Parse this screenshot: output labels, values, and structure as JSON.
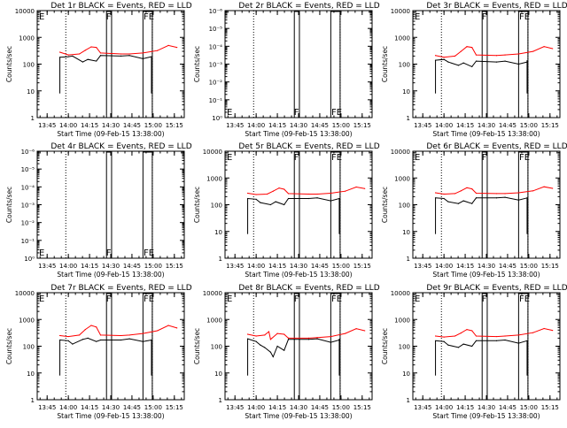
{
  "colors": {
    "events": "#000000",
    "lld": "#ff0000",
    "background": "#ffffff",
    "axes": "#000000"
  },
  "chart_data": [
    {
      "type": "line",
      "title": "Det 1r BLACK = Events, RED = LLD",
      "xlabel": "Start Time (09-Feb-15 13:38:00)",
      "ylabel": "Counts/sec",
      "xticks": [
        "13:45",
        "14:00",
        "14:15",
        "14:30",
        "14:45",
        "15:00",
        "15:15"
      ],
      "yticks": [
        "1",
        "10",
        "100",
        "1000",
        "10000"
      ],
      "ylim": [
        1,
        10000
      ],
      "yscale": "log",
      "grid": false,
      "has_data": true,
      "flag_labels": [
        "F",
        "FE"
      ],
      "series": [
        {
          "color": "#000000",
          "x": [
            13.9,
            14.0,
            14.05,
            14.17,
            14.23,
            14.33,
            14.38,
            14.62,
            14.72,
            14.88,
            14.98
          ],
          "y": [
            180,
            190,
            200,
            120,
            150,
            130,
            210,
            200,
            210,
            160,
            190
          ]
        },
        {
          "color": "#ff0000",
          "x": [
            13.9,
            14.0,
            14.13,
            14.2,
            14.27,
            14.33,
            14.38,
            14.62,
            14.72,
            14.88,
            15.05,
            15.18,
            15.28
          ],
          "y": [
            280,
            220,
            240,
            330,
            440,
            420,
            260,
            240,
            240,
            260,
            320,
            500,
            420
          ]
        }
      ]
    },
    {
      "type": "line",
      "title": "Det 2r BLACK = Events, RED = LLD",
      "xlabel": "Start Time (09-Feb-15 13:38:00)",
      "ylabel": "Counts/sec",
      "xticks": [
        "13:45",
        "14:00",
        "14:15",
        "14:30",
        "14:45",
        "15:00",
        "15:15"
      ],
      "yticks": [
        "10⁰",
        "10⁻¹",
        "10⁻²",
        "10⁻³",
        "10⁻⁴",
        "10⁻⁵",
        "10⁻⁶"
      ],
      "ylim": [
        1e-06,
        1
      ],
      "yscale": "log",
      "grid": false,
      "has_data": false,
      "flag_labels": [
        "F",
        "FE"
      ],
      "series": []
    },
    {
      "type": "line",
      "title": "Det 3r BLACK = Events, RED = LLD",
      "xlabel": "Start Time (09-Feb-15 13:38:00)",
      "ylabel": "Counts/sec",
      "xticks": [
        "13:45",
        "14:00",
        "14:15",
        "14:30",
        "14:45",
        "15:00",
        "15:15"
      ],
      "yticks": [
        "1",
        "10",
        "100",
        "1000",
        "10000"
      ],
      "ylim": [
        1,
        10000
      ],
      "yscale": "log",
      "grid": false,
      "has_data": true,
      "flag_labels": [
        "F",
        "FE"
      ],
      "series": [
        {
          "color": "#000000",
          "x": [
            13.9,
            14.0,
            14.05,
            14.17,
            14.23,
            14.33,
            14.38,
            14.62,
            14.72,
            14.88,
            14.98
          ],
          "y": [
            140,
            150,
            120,
            90,
            110,
            80,
            130,
            120,
            130,
            100,
            120
          ]
        },
        {
          "color": "#ff0000",
          "x": [
            13.9,
            14.0,
            14.13,
            14.2,
            14.27,
            14.33,
            14.38,
            14.62,
            14.72,
            14.88,
            15.05,
            15.18,
            15.28
          ],
          "y": [
            210,
            180,
            200,
            300,
            450,
            420,
            220,
            210,
            220,
            240,
            300,
            450,
            380
          ]
        }
      ]
    },
    {
      "type": "line",
      "title": "Det 4r BLACK = Events, RED = LLD",
      "xlabel": "Start Time (09-Feb-15 13:38:00)",
      "ylabel": "Counts/sec",
      "xticks": [
        "13:45",
        "14:00",
        "14:15",
        "14:30",
        "14:45",
        "15:00",
        "15:15"
      ],
      "yticks": [
        "10⁰",
        "10⁻¹",
        "10⁻²",
        "10⁻³",
        "10⁻⁴",
        "10⁻⁵",
        "10⁻⁶"
      ],
      "ylim": [
        1e-06,
        1
      ],
      "yscale": "log",
      "grid": false,
      "has_data": false,
      "flag_labels": [
        "F",
        "FE"
      ],
      "series": []
    },
    {
      "type": "line",
      "title": "Det 5r BLACK = Events, RED = LLD",
      "xlabel": "Start Time (09-Feb-15 13:38:00)",
      "ylabel": "Counts/sec",
      "xticks": [
        "13:45",
        "14:00",
        "14:15",
        "14:30",
        "14:45",
        "15:00",
        "15:15"
      ],
      "yticks": [
        "1",
        "10",
        "100",
        "1000",
        "10000"
      ],
      "ylim": [
        1,
        10000
      ],
      "yscale": "log",
      "grid": false,
      "has_data": true,
      "flag_labels": [
        "F",
        "FE"
      ],
      "series": [
        {
          "color": "#000000",
          "x": [
            13.9,
            14.0,
            14.05,
            14.17,
            14.23,
            14.33,
            14.38,
            14.62,
            14.72,
            14.88,
            14.98
          ],
          "y": [
            170,
            160,
            120,
            100,
            130,
            100,
            170,
            170,
            180,
            140,
            170
          ]
        },
        {
          "color": "#ff0000",
          "x": [
            13.9,
            14.0,
            14.13,
            14.2,
            14.27,
            14.33,
            14.38,
            14.62,
            14.72,
            14.88,
            15.05,
            15.18,
            15.28
          ],
          "y": [
            270,
            240,
            250,
            320,
            420,
            380,
            260,
            250,
            250,
            270,
            320,
            460,
            400
          ]
        }
      ]
    },
    {
      "type": "line",
      "title": "Det 6r BLACK = Events, RED = LLD",
      "xlabel": "Start Time (09-Feb-15 13:38:00)",
      "ylabel": "Counts/sec",
      "xticks": [
        "13:45",
        "14:00",
        "14:15",
        "14:30",
        "14:45",
        "15:00",
        "15:15"
      ],
      "yticks": [
        "1",
        "10",
        "100",
        "1000",
        "10000"
      ],
      "ylim": [
        1,
        10000
      ],
      "yscale": "log",
      "grid": false,
      "has_data": true,
      "flag_labels": [
        "F",
        "FE"
      ],
      "series": [
        {
          "color": "#000000",
          "x": [
            13.9,
            14.0,
            14.05,
            14.17,
            14.23,
            14.33,
            14.38,
            14.62,
            14.72,
            14.88,
            14.98
          ],
          "y": [
            180,
            170,
            130,
            110,
            140,
            110,
            180,
            180,
            190,
            150,
            180
          ]
        },
        {
          "color": "#ff0000",
          "x": [
            13.9,
            14.0,
            14.13,
            14.2,
            14.27,
            14.33,
            14.38,
            14.62,
            14.72,
            14.88,
            15.05,
            15.18,
            15.28
          ],
          "y": [
            280,
            250,
            260,
            330,
            430,
            390,
            270,
            260,
            260,
            280,
            330,
            470,
            410
          ]
        }
      ]
    },
    {
      "type": "line",
      "title": "Det 7r BLACK = Events, RED = LLD",
      "xlabel": "Start Time (09-Feb-15 13:38:00)",
      "ylabel": "Counts/sec",
      "xticks": [
        "13:45",
        "14:00",
        "14:15",
        "14:30",
        "14:45",
        "15:00",
        "15:15"
      ],
      "yticks": [
        "1",
        "10",
        "100",
        "1000",
        "10000"
      ],
      "ylim": [
        1,
        10000
      ],
      "yscale": "log",
      "grid": false,
      "has_data": true,
      "flag_labels": [
        "F",
        "FE"
      ],
      "series": [
        {
          "color": "#000000",
          "x": [
            13.9,
            14.0,
            14.05,
            14.17,
            14.23,
            14.33,
            14.38,
            14.62,
            14.72,
            14.88,
            14.98
          ],
          "y": [
            170,
            160,
            120,
            180,
            200,
            150,
            170,
            170,
            190,
            150,
            170
          ]
        },
        {
          "color": "#ff0000",
          "x": [
            13.9,
            14.0,
            14.13,
            14.2,
            14.27,
            14.33,
            14.38,
            14.62,
            14.72,
            14.88,
            15.05,
            15.18,
            15.28
          ],
          "y": [
            250,
            230,
            260,
            420,
            600,
            520,
            260,
            250,
            260,
            300,
            380,
            600,
            480
          ]
        }
      ]
    },
    {
      "type": "line",
      "title": "Det 8r BLACK = Events, RED = LLD",
      "xlabel": "Start Time (09-Feb-15 13:38:00)",
      "ylabel": "Counts/sec",
      "xticks": [
        "13:45",
        "14:00",
        "14:15",
        "14:30",
        "14:45",
        "15:00",
        "15:15"
      ],
      "yticks": [
        "1",
        "10",
        "100",
        "1000",
        "10000"
      ],
      "ylim": [
        1,
        10000
      ],
      "yscale": "log",
      "grid": false,
      "has_data": true,
      "flag_labels": [
        "F",
        "FE"
      ],
      "series": [
        {
          "color": "#000000",
          "x": [
            13.9,
            14.0,
            14.05,
            14.1,
            14.17,
            14.2,
            14.25,
            14.33,
            14.38,
            14.62,
            14.72,
            14.88,
            14.98
          ],
          "y": [
            190,
            150,
            110,
            90,
            60,
            40,
            100,
            70,
            180,
            180,
            190,
            140,
            170
          ]
        },
        {
          "color": "#ff0000",
          "x": [
            13.9,
            14.0,
            14.1,
            14.15,
            14.17,
            14.25,
            14.33,
            14.38,
            14.62,
            14.72,
            14.88,
            15.05,
            15.18,
            15.28
          ],
          "y": [
            280,
            240,
            260,
            350,
            180,
            300,
            280,
            200,
            200,
            210,
            230,
            300,
            450,
            380
          ]
        }
      ]
    },
    {
      "type": "line",
      "title": "Det 9r BLACK = Events, RED = LLD",
      "xlabel": "Start Time (09-Feb-15 13:38:00)",
      "ylabel": "Counts/sec",
      "xticks": [
        "13:45",
        "14:00",
        "14:15",
        "14:30",
        "14:45",
        "15:00",
        "15:15"
      ],
      "yticks": [
        "1",
        "10",
        "100",
        "1000",
        "10000"
      ],
      "ylim": [
        1,
        10000
      ],
      "yscale": "log",
      "grid": false,
      "has_data": true,
      "flag_labels": [
        "F",
        "FE"
      ],
      "series": [
        {
          "color": "#000000",
          "x": [
            13.9,
            14.0,
            14.05,
            14.17,
            14.23,
            14.33,
            14.38,
            14.62,
            14.72,
            14.88,
            14.98
          ],
          "y": [
            160,
            150,
            110,
            90,
            120,
            100,
            160,
            160,
            170,
            130,
            160
          ]
        },
        {
          "color": "#ff0000",
          "x": [
            13.9,
            14.0,
            14.13,
            14.2,
            14.27,
            14.33,
            14.38,
            14.62,
            14.72,
            14.88,
            15.05,
            15.18,
            15.28
          ],
          "y": [
            240,
            220,
            240,
            310,
            420,
            380,
            240,
            230,
            240,
            260,
            320,
            460,
            390
          ]
        }
      ]
    }
  ]
}
